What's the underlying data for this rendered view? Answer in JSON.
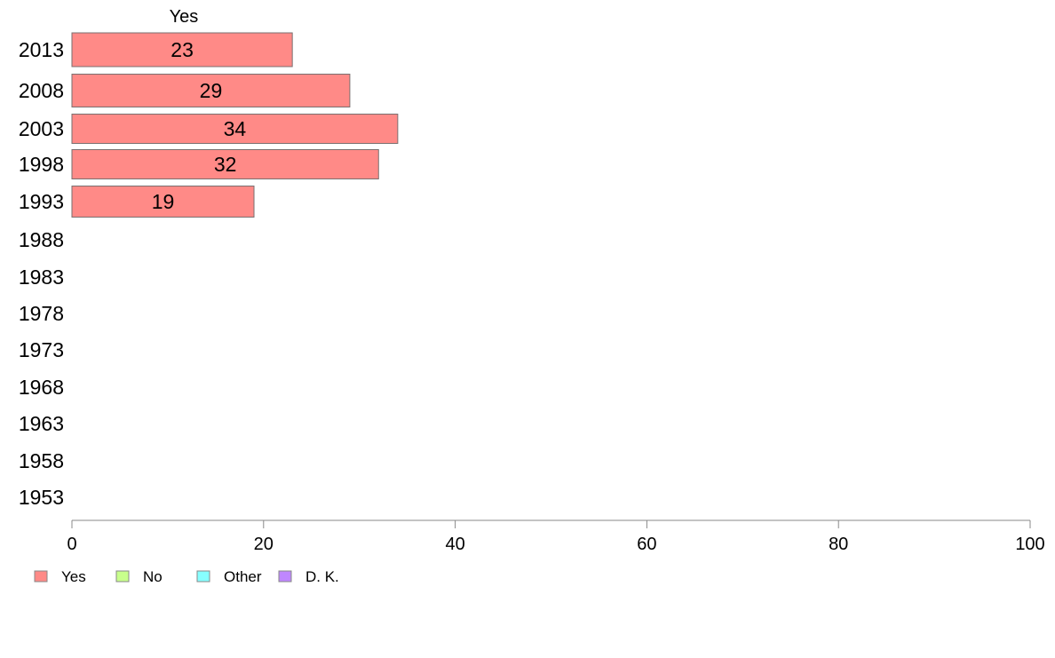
{
  "chart_data": {
    "type": "bar",
    "orientation": "horizontal",
    "title": "",
    "column_label": "Yes",
    "categories": [
      "2013",
      "2008",
      "2003",
      "1998",
      "1993",
      "1988",
      "1983",
      "1978",
      "1973",
      "1968",
      "1963",
      "1958",
      "1953"
    ],
    "series": [
      {
        "name": "Yes",
        "color": "#ff8a87",
        "values": [
          23,
          29,
          34,
          32,
          19,
          null,
          null,
          null,
          null,
          null,
          null,
          null,
          null
        ],
        "labels": [
          "23",
          "29",
          "34",
          "32",
          "19",
          "",
          "",
          "",
          "",
          "",
          "",
          "",
          ""
        ]
      }
    ],
    "x_ticks": [
      "0",
      "20",
      "40",
      "60",
      "80",
      "100"
    ],
    "xlim": [
      0,
      100
    ],
    "xlabel": "",
    "ylabel": "",
    "grid": false,
    "legend_position": "bottom-left",
    "legend": [
      {
        "name": "Yes",
        "color": "#ff8a87"
      },
      {
        "name": "No",
        "color": "#c8ff8c"
      },
      {
        "name": "Other",
        "color": "#87ffff"
      },
      {
        "name": "D. K.",
        "color": "#bf87ff"
      }
    ]
  }
}
